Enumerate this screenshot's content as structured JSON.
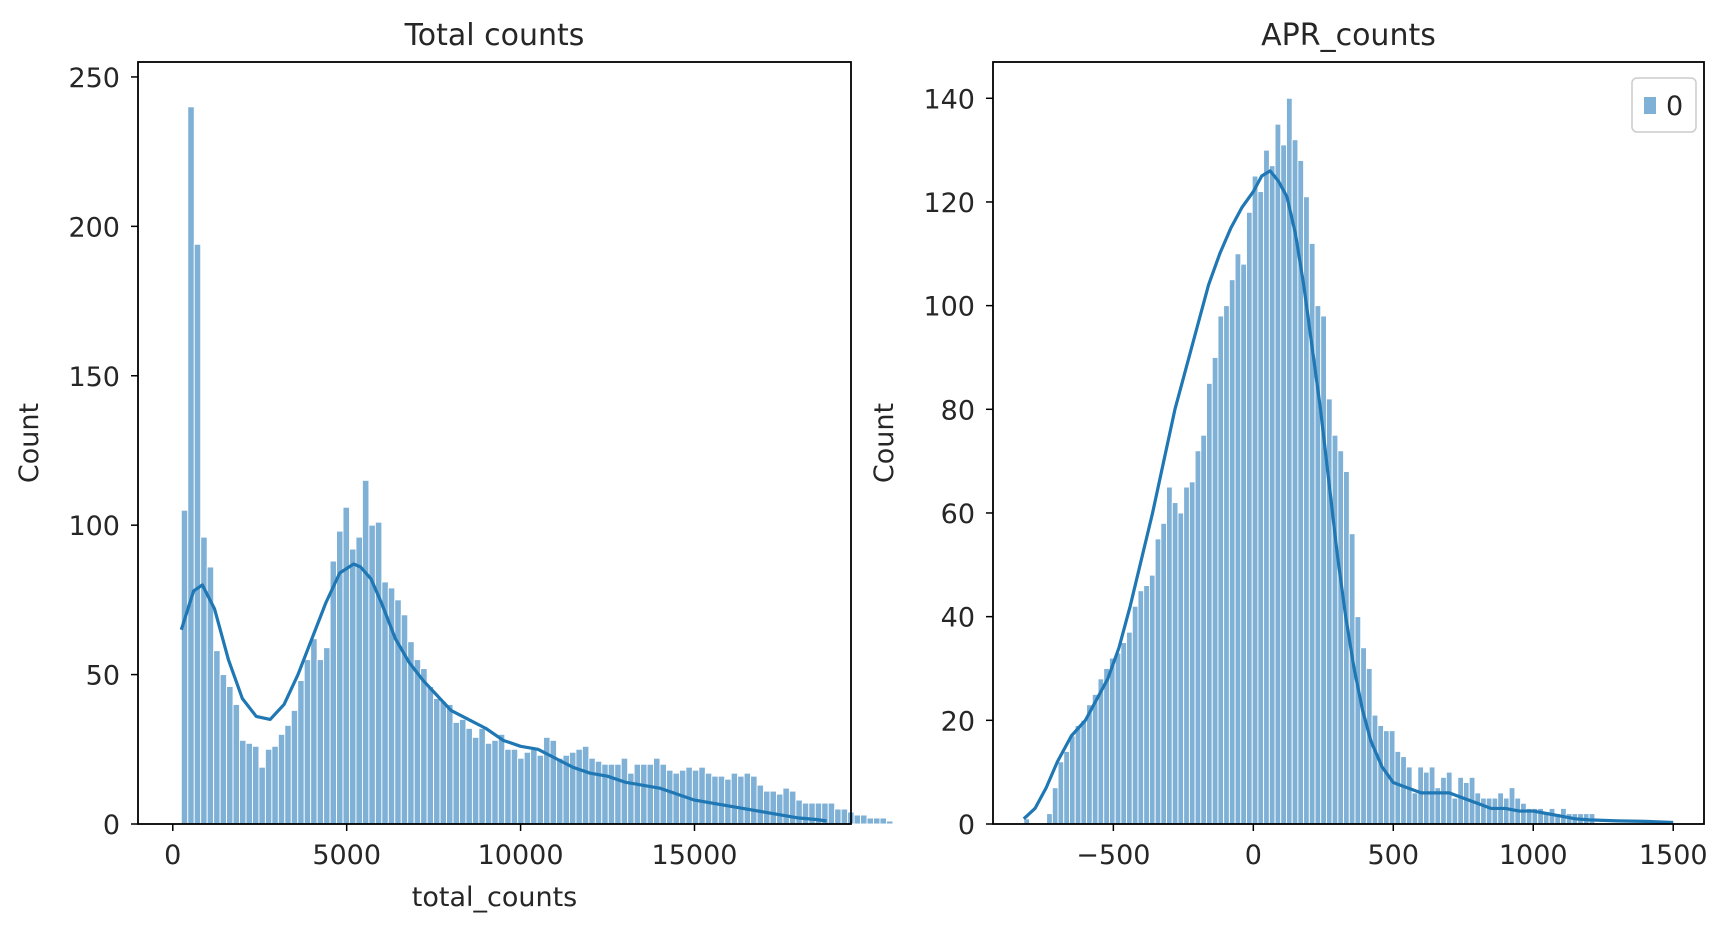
{
  "colors": {
    "bar_fill": "#7fb0d6",
    "bar_edge": "#ffffff",
    "kde_line": "#1f77b4",
    "axis": "#000000",
    "text": "#262626"
  },
  "chart_data": [
    {
      "type": "histogram",
      "title": "Total counts",
      "xlabel": "total_counts",
      "ylabel": "Count",
      "xlim": [
        -1000,
        19500
      ],
      "ylim": [
        0,
        255
      ],
      "xticks": [
        0,
        5000,
        10000,
        15000
      ],
      "xtick_labels": [
        "0",
        "5000",
        "10000",
        "15000"
      ],
      "yticks": [
        0,
        50,
        100,
        150,
        200,
        250
      ],
      "ytick_labels": [
        "0",
        "50",
        "100",
        "150",
        "200",
        "250"
      ],
      "bin_start": 245,
      "bin_width": 186,
      "counts": [
        105,
        240,
        194,
        96,
        86,
        58,
        50,
        46,
        40,
        28,
        27,
        26,
        19,
        25,
        26,
        30,
        33,
        38,
        48,
        55,
        62,
        55,
        59,
        88,
        98,
        106,
        92,
        96,
        115,
        100,
        101,
        81,
        79,
        75,
        70,
        61,
        55,
        52,
        46,
        42,
        41,
        40,
        34,
        35,
        32,
        29,
        32,
        27,
        28,
        30,
        25,
        25,
        22,
        24,
        25,
        23,
        29,
        28,
        22,
        23,
        24,
        25,
        26,
        22,
        21,
        20,
        20,
        20,
        22,
        17,
        20,
        20,
        20,
        22,
        20,
        18,
        17,
        18,
        19,
        18,
        19,
        17,
        16,
        16,
        15,
        17,
        16,
        17,
        16,
        13,
        11,
        11,
        10,
        12,
        11,
        8,
        7,
        7,
        7,
        7,
        7,
        5,
        5,
        4,
        3,
        3,
        2,
        2,
        2,
        1
      ],
      "kde": {
        "x": [
          245,
          600,
          850,
          1200,
          1600,
          2000,
          2400,
          2800,
          3200,
          3600,
          4000,
          4400,
          4800,
          5200,
          5400,
          5700,
          6000,
          6400,
          6800,
          7200,
          7600,
          8000,
          8500,
          9000,
          9500,
          10000,
          10500,
          11000,
          11500,
          12000,
          12500,
          13000,
          13500,
          14000,
          14500,
          15000,
          15500,
          16000,
          16500,
          17000,
          17500,
          18000,
          18500,
          18800
        ],
        "y": [
          65,
          78,
          80,
          72,
          55,
          42,
          36,
          35,
          40,
          50,
          62,
          74,
          84,
          87,
          86,
          82,
          74,
          62,
          54,
          48,
          43,
          38,
          35,
          32,
          28,
          26,
          25,
          22,
          19,
          17,
          16,
          14,
          13,
          12,
          10,
          8,
          7,
          6,
          5,
          4,
          3,
          2,
          1.5,
          1
        ]
      },
      "legend": null
    },
    {
      "type": "histogram",
      "title": "APR_counts",
      "xlabel": "",
      "ylabel": "Count",
      "xlim": [
        -930,
        1610
      ],
      "ylim": [
        0,
        147
      ],
      "xticks": [
        -500,
        0,
        500,
        1000,
        1500
      ],
      "xtick_labels": [
        "−500",
        "0",
        "500",
        "1000",
        "1500"
      ],
      "yticks": [
        0,
        20,
        40,
        60,
        80,
        100,
        120,
        140
      ],
      "ytick_labels": [
        "0",
        "20",
        "40",
        "60",
        "80",
        "100",
        "120",
        "140"
      ],
      "bin_start": -820,
      "bin_width": 20.4,
      "counts": [
        1,
        0,
        0,
        0,
        2,
        7,
        12,
        14,
        17,
        19,
        20,
        23,
        25,
        28,
        30,
        32,
        33,
        35,
        37,
        42,
        45,
        46,
        48,
        55,
        58,
        65,
        62,
        60,
        65,
        66,
        72,
        75,
        85,
        90,
        98,
        100,
        105,
        110,
        108,
        118,
        125,
        122,
        130,
        127,
        135,
        131,
        140,
        132,
        128,
        121,
        112,
        100,
        98,
        82,
        75,
        72,
        68,
        56,
        40,
        34,
        30,
        21,
        19,
        18,
        18,
        14,
        13,
        11,
        6,
        11,
        10,
        11,
        7,
        9,
        10,
        5,
        9,
        8,
        9,
        6,
        5,
        5,
        5,
        6,
        5,
        7,
        5,
        4,
        3,
        3,
        3,
        2,
        3,
        2,
        3,
        2,
        2,
        2,
        2,
        2,
        0,
        0,
        0,
        0,
        0,
        0,
        0,
        0,
        0,
        0,
        0,
        0,
        0,
        0,
        0,
        0,
        0,
        0,
        0,
        0,
        0,
        0,
        0,
        0
      ],
      "kde": {
        "x": [
          -820,
          -780,
          -740,
          -700,
          -650,
          -600,
          -560,
          -520,
          -480,
          -440,
          -400,
          -360,
          -320,
          -280,
          -240,
          -200,
          -160,
          -120,
          -80,
          -40,
          0,
          30,
          60,
          90,
          120,
          150,
          180,
          210,
          240,
          270,
          300,
          330,
          360,
          390,
          420,
          460,
          500,
          550,
          600,
          650,
          700,
          750,
          800,
          850,
          900,
          950,
          1000,
          1050,
          1100,
          1150,
          1200,
          1300,
          1400,
          1500
        ],
        "y": [
          1,
          3,
          7,
          12,
          17,
          20,
          24,
          28,
          34,
          42,
          51,
          60,
          70,
          80,
          88,
          96,
          104,
          110,
          115,
          119,
          122,
          125,
          126,
          124,
          121,
          114,
          104,
          92,
          80,
          66,
          52,
          40,
          30,
          22,
          16,
          11,
          8,
          7,
          6,
          6,
          6,
          5,
          4,
          3,
          3,
          2.5,
          2.5,
          2,
          1.5,
          1,
          0.8,
          0.6,
          0.5,
          0.3
        ]
      },
      "legend": {
        "label": "0",
        "position": "top-right"
      }
    }
  ]
}
